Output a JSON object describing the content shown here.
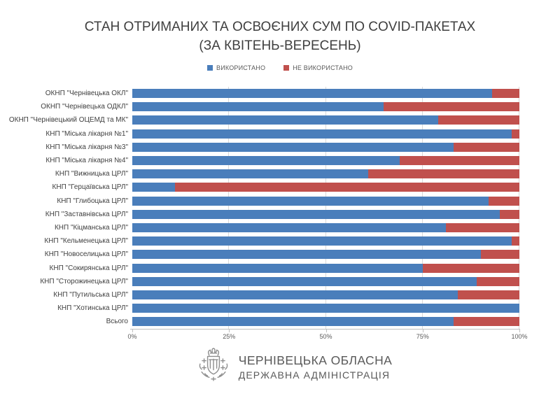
{
  "title": {
    "line1": "СТАН ОТРИМАНИХ ТА ОСВОЄНИХ СУМ ПО COVID-ПАКЕТАХ",
    "line2": "(ЗА КВІТЕНЬ-ВЕРЕСЕНЬ)"
  },
  "legend": [
    {
      "label": "ВИКОРИСТАНО",
      "color": "#4a7ebb"
    },
    {
      "label": "НЕ ВИКОРИСТАНО",
      "color": "#c0504d"
    }
  ],
  "chart_data": {
    "type": "bar",
    "orientation": "horizontal",
    "stacked": true,
    "stacked_total": 100,
    "grid": true,
    "legend_position": "top",
    "xlim": [
      0,
      100
    ],
    "x_ticks": [
      "0%",
      "25%",
      "50%",
      "75%",
      "100%"
    ],
    "x_tick_values": [
      0,
      25,
      50,
      75,
      100
    ],
    "categories": [
      "ОКНП \"Чернівецька ОКЛ\"",
      "ОКНП \"Чернівецька ОДКЛ\"",
      "ОКНП \"Чернівецький ОЦЕМД та МК\"",
      "КНП \"Міська лікарня №1\"",
      "КНП \"Міська лікарня №3\"",
      "КНП \"Міська лікарня №4\"",
      "КНП \"Вижницька ЦРЛ\"",
      "КНП \"Герцаївська ЦРЛ\"",
      "КНП \"Глибоцька ЦРЛ\"",
      "КНП \"Заставнівська ЦРЛ\"",
      "КНП \"Кіцманська ЦРЛ\"",
      "КНП \"Кельменецька ЦРЛ\"",
      "КНП \"Новоселицька ЦРЛ\"",
      "КНП \"Сокирянська ЦРЛ\"",
      "КНП \"Сторожинецька ЦРЛ\"",
      "КНП \"Путильська ЦРЛ\"",
      "КНП \"Хотинська ЦРЛ\"",
      "Всього"
    ],
    "series": [
      {
        "name": "ВИКОРИСТАНО",
        "color": "#4a7ebb",
        "values": [
          93,
          65,
          79,
          98,
          83,
          69,
          61,
          11,
          92,
          95,
          81,
          98,
          90,
          75,
          89,
          84,
          100,
          83
        ]
      },
      {
        "name": "НЕ ВИКОРИСТАНО",
        "color": "#c0504d",
        "values": [
          7,
          35,
          21,
          2,
          17,
          31,
          39,
          89,
          8,
          5,
          19,
          2,
          10,
          25,
          11,
          16,
          0,
          17
        ]
      }
    ]
  },
  "footer": {
    "org_line1": "ЧЕРНІВЕЦЬКА ОБЛАСНА",
    "org_line2": "ДЕРЖАВНА АДМІНІСТРАЦІЯ"
  },
  "colors": {
    "used": "#4a7ebb",
    "unused": "#c0504d",
    "gridline": "#d9d9d9",
    "axis": "#bfbfbf",
    "title_text": "#3f3f3f",
    "footer_text": "#5a5a5a"
  }
}
